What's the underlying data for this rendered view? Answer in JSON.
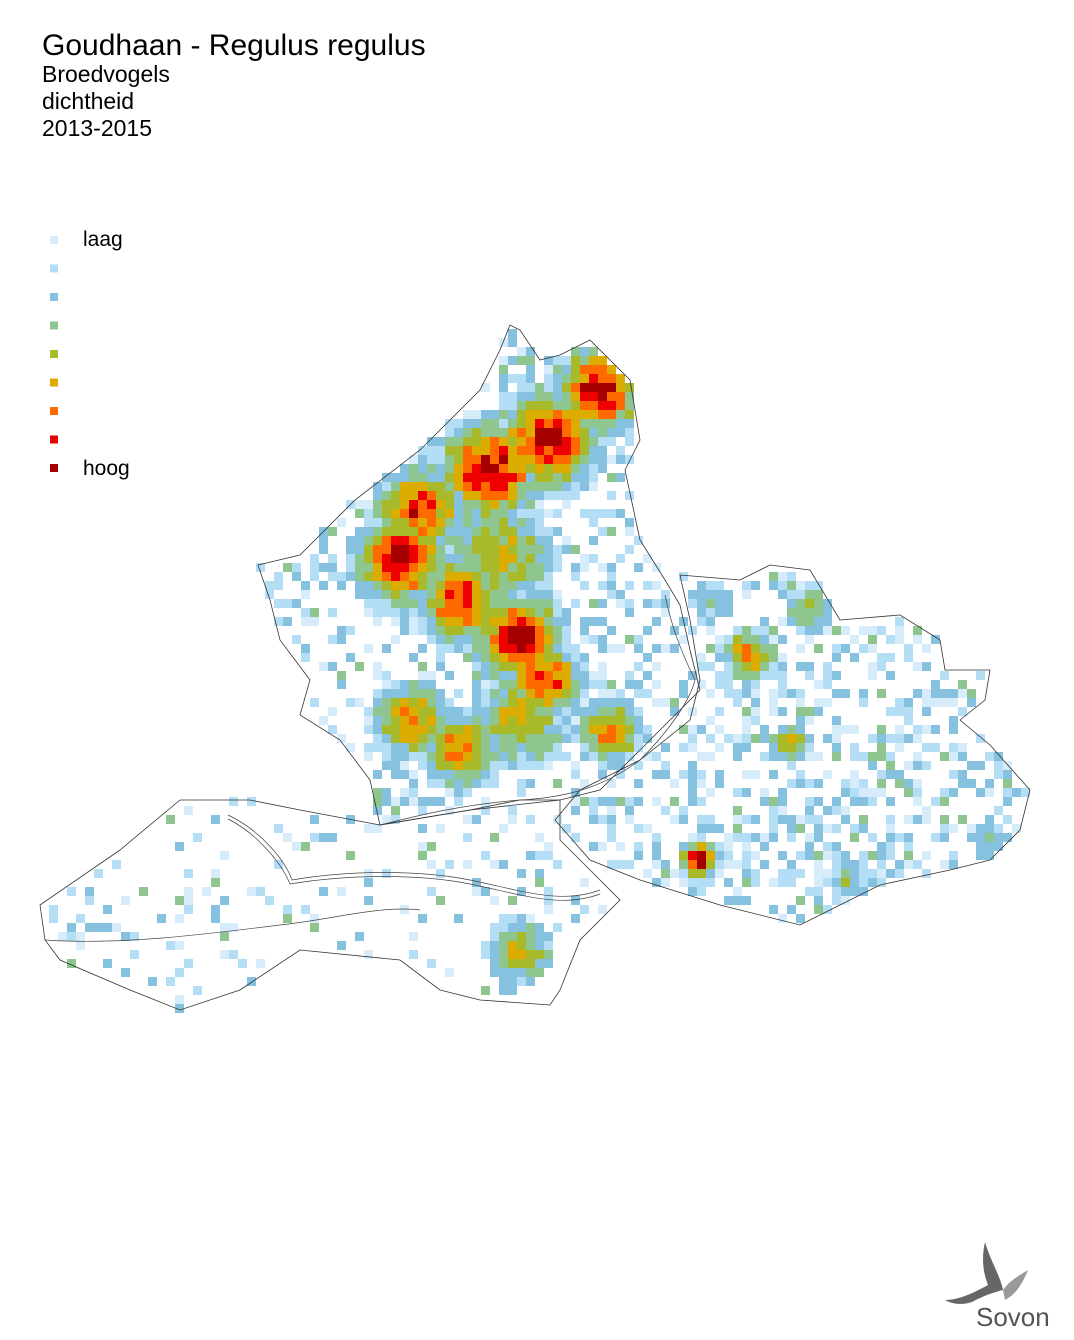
{
  "header": {
    "title": "Goudhaan - Regulus regulus",
    "subtitle": [
      "Broedvogels",
      "dichtheid",
      "2013-2015"
    ]
  },
  "legend": {
    "colors": [
      "#d6ecfa",
      "#b3def5",
      "#86c2e0",
      "#8fc58e",
      "#a8ba2a",
      "#dcad00",
      "#ff6a00",
      "#ee0000",
      "#a50000"
    ],
    "low_label": "laag",
    "high_label": "hoog"
  },
  "logo": {
    "text": "Sovon"
  }
}
